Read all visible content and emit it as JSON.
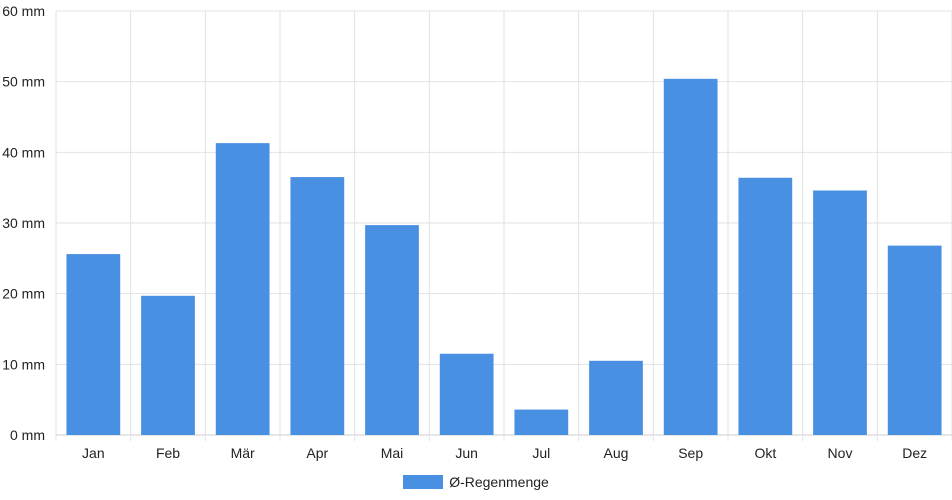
{
  "chart_data": {
    "type": "bar",
    "categories": [
      "Jan",
      "Feb",
      "Mär",
      "Apr",
      "Mai",
      "Jun",
      "Jul",
      "Aug",
      "Sep",
      "Okt",
      "Nov",
      "Dez"
    ],
    "series": [
      {
        "name": "Ø-Regenmenge",
        "values": [
          25.6,
          19.7,
          41.3,
          36.5,
          29.7,
          11.5,
          3.6,
          10.5,
          50.4,
          36.4,
          34.6,
          26.8
        ],
        "color": "#4a90e2"
      }
    ],
    "yticks": [
      "0 mm",
      "10 mm",
      "20 mm",
      "30 mm",
      "40 mm",
      "50 mm",
      "60 mm"
    ],
    "ylim": [
      0,
      60
    ],
    "grid": true,
    "legend_position": "bottom-center",
    "colors": {
      "grid": "#e2e2e2",
      "axis": "#cccccc",
      "text": "#222222"
    }
  }
}
